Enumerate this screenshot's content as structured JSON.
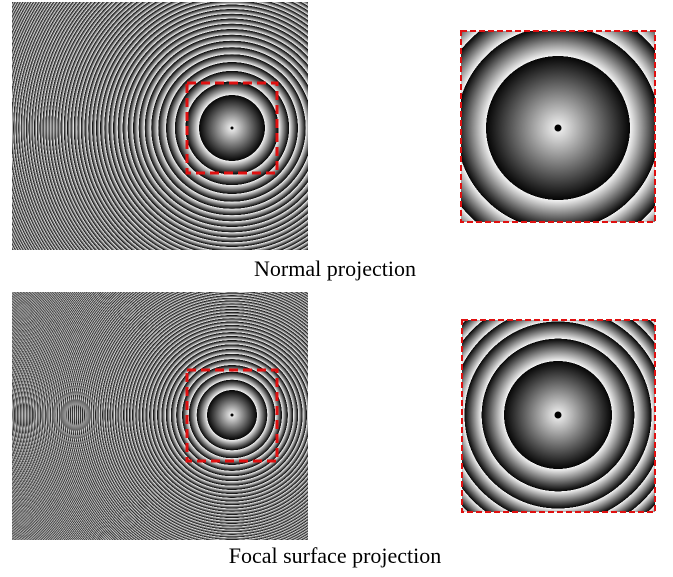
{
  "panels": [
    {
      "caption": "Normal projection"
    },
    {
      "caption": "Focal surface projection"
    }
  ]
}
